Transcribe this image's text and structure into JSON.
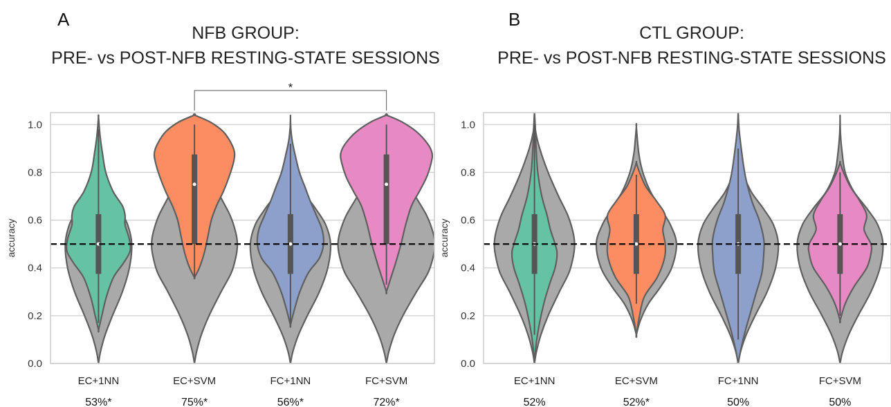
{
  "chart_data": [
    {
      "type": "violin",
      "panel": "A",
      "title_lines": [
        "NFB GROUP:",
        "PRE- vs POST-NFB RESTING-STATE SESSIONS"
      ],
      "ylabel": "accuracy",
      "ylim": [
        0,
        1.05
      ],
      "yticks": [
        "0.0",
        "0.2",
        "0.4",
        "0.6",
        "0.8",
        "1.0"
      ],
      "grid": true,
      "chance_level": 0.5,
      "categories": [
        "EC+1NN",
        "EC+SVM",
        "FC+1NN",
        "FC+SVM"
      ],
      "mean_accuracy_labels": [
        "53%*",
        "75%*",
        "56%*",
        "72%*"
      ],
      "significance": {
        "from": "EC+SVM",
        "to": "FC+SVM",
        "label": "*"
      },
      "series": [
        {
          "category": "EC+1NN",
          "color": "#66c2a5",
          "median": 0.5,
          "q1": 0.375,
          "q3": 0.625,
          "min": 0.17,
          "max": 0.98
        },
        {
          "category": "EC+SVM",
          "color": "#fc8d62",
          "median": 0.75,
          "q1": 0.5,
          "q3": 0.875,
          "min": 0.36,
          "max": 1.0
        },
        {
          "category": "FC+1NN",
          "color": "#8da0cb",
          "median": 0.5,
          "q1": 0.375,
          "q3": 0.625,
          "min": 0.17,
          "max": 0.92
        },
        {
          "category": "FC+SVM",
          "color": "#e78ac3",
          "median": 0.75,
          "q1": 0.5,
          "q3": 0.875,
          "min": 0.33,
          "max": 1.0
        }
      ],
      "null_distribution_color": "#a9a9a9"
    },
    {
      "type": "violin",
      "panel": "B",
      "title_lines": [
        "CTL GROUP:",
        "PRE- vs POST-NFB RESTING-STATE SESSIONS"
      ],
      "ylabel": "accuracy",
      "ylim": [
        0,
        1.05
      ],
      "yticks": [
        "0.0",
        "0.2",
        "0.4",
        "0.6",
        "0.8",
        "1.0"
      ],
      "grid": true,
      "chance_level": 0.5,
      "categories": [
        "EC+1NN",
        "EC+SVM",
        "FC+1NN",
        "FC+SVM"
      ],
      "mean_accuracy_labels": [
        "52%",
        "52%*",
        "50%",
        "50%"
      ],
      "series": [
        {
          "category": "EC+1NN",
          "color": "#66c2a5",
          "median": 0.5,
          "q1": 0.375,
          "q3": 0.625,
          "min": 0.12,
          "max": 1.0
        },
        {
          "category": "EC+SVM",
          "color": "#fc8d62",
          "median": 0.5,
          "q1": 0.375,
          "q3": 0.625,
          "min": 0.25,
          "max": 0.79
        },
        {
          "category": "FC+1NN",
          "color": "#8da0cb",
          "median": 0.5,
          "q1": 0.375,
          "q3": 0.625,
          "min": 0.1,
          "max": 0.9
        },
        {
          "category": "FC+SVM",
          "color": "#e78ac3",
          "median": 0.5,
          "q1": 0.375,
          "q3": 0.625,
          "min": 0.2,
          "max": 0.8
        }
      ],
      "null_distribution_color": "#a9a9a9"
    }
  ]
}
